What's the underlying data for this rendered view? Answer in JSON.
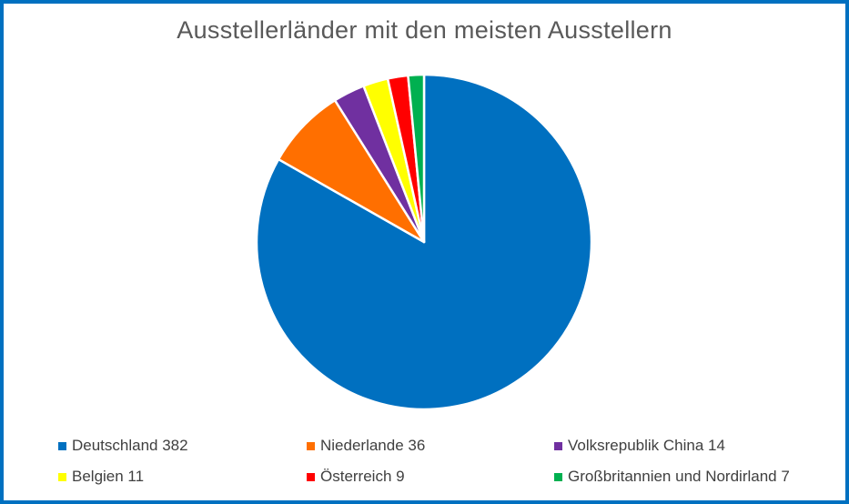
{
  "chart_data": {
    "type": "pie",
    "title": "Ausstellerländer mit den meisten Ausstellern",
    "start_angle_deg": 0,
    "direction": "clockwise",
    "legend_position": "bottom",
    "slices": [
      {
        "label": "Deutschland 382",
        "category": "Deutschland",
        "value": 382,
        "color": "#0070C0"
      },
      {
        "label": "Niederlande 36",
        "category": "Niederlande",
        "value": 36,
        "color": "#FF6F00"
      },
      {
        "label": "Volksrepublik China 14",
        "category": "Volksrepublik China",
        "value": 14,
        "color": "#7030A0"
      },
      {
        "label": "Belgien 11",
        "category": "Belgien",
        "value": 11,
        "color": "#FFFF00"
      },
      {
        "label": "Österreich 9",
        "category": "Österreich",
        "value": 9,
        "color": "#FF0000"
      },
      {
        "label": "Großbritannien und Nordirland 7",
        "category": "Großbritannien und Nordirland",
        "value": 7,
        "color": "#00B050"
      }
    ]
  },
  "colors": {
    "frame_border": "#0070C0",
    "title_text": "#595959",
    "legend_text": "#404040",
    "slice_separator": "#FFFFFF"
  }
}
